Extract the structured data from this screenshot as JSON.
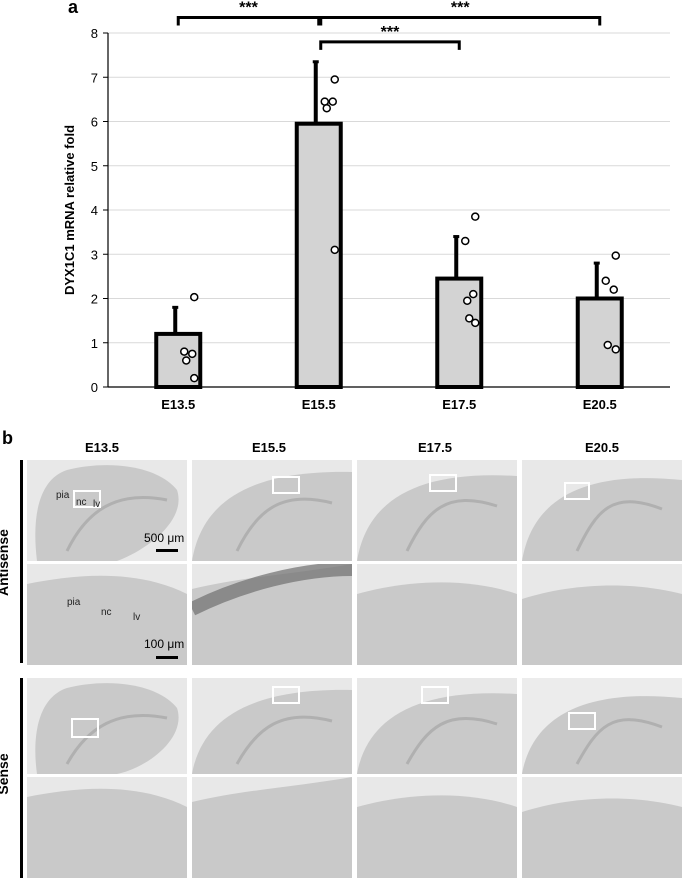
{
  "panel_a_label": "a",
  "panel_b_label": "b",
  "chart_data": {
    "type": "bar",
    "categories": [
      "E13.5",
      "E15.5",
      "E17.5",
      "E20.5"
    ],
    "values": [
      1.2,
      5.95,
      2.45,
      2.0
    ],
    "errors": [
      0.6,
      1.4,
      0.95,
      0.8
    ],
    "points": [
      [
        2.03,
        0.8,
        0.75,
        0.6,
        0.2
      ],
      [
        6.95,
        6.45,
        6.45,
        6.3,
        3.1
      ],
      [
        3.85,
        3.3,
        2.1,
        1.95,
        1.45,
        1.55
      ],
      [
        2.97,
        2.4,
        2.2,
        0.95,
        0.85
      ]
    ],
    "ylabel": "DYX1C1 mRNA relative fold",
    "xlabel": "",
    "ylim": [
      0,
      8
    ],
    "yticks": [
      "0",
      "1",
      "2",
      "3",
      "4",
      "5",
      "6",
      "7",
      "8"
    ],
    "grid": true,
    "significance": [
      {
        "from": 0,
        "to": 1,
        "label": "***",
        "level": 8.35
      },
      {
        "from": 1,
        "to": 2,
        "label": "***",
        "level": 7.8
      },
      {
        "from": 1,
        "to": 3,
        "label": "***",
        "level": 8.35
      }
    ],
    "colors": {
      "bar_fill": "#d3d3d3",
      "bar_edge": "#000000",
      "grid": "#d9d9d9"
    }
  },
  "panel_b": {
    "columns": [
      "E13.5",
      "E15.5",
      "E17.5",
      "E20.5"
    ],
    "rows": [
      "Antisense",
      "Sense"
    ],
    "scale_top": "500 μm",
    "scale_mid": "100 μm",
    "labels_top": [
      "pia",
      "nc",
      "lv"
    ],
    "labels_mid": [
      "pia",
      "nc",
      "lv"
    ],
    "colors": {
      "tissue": "#c9c9c9",
      "background": "#e8e8e8",
      "stain": "#6f6f6f"
    }
  }
}
